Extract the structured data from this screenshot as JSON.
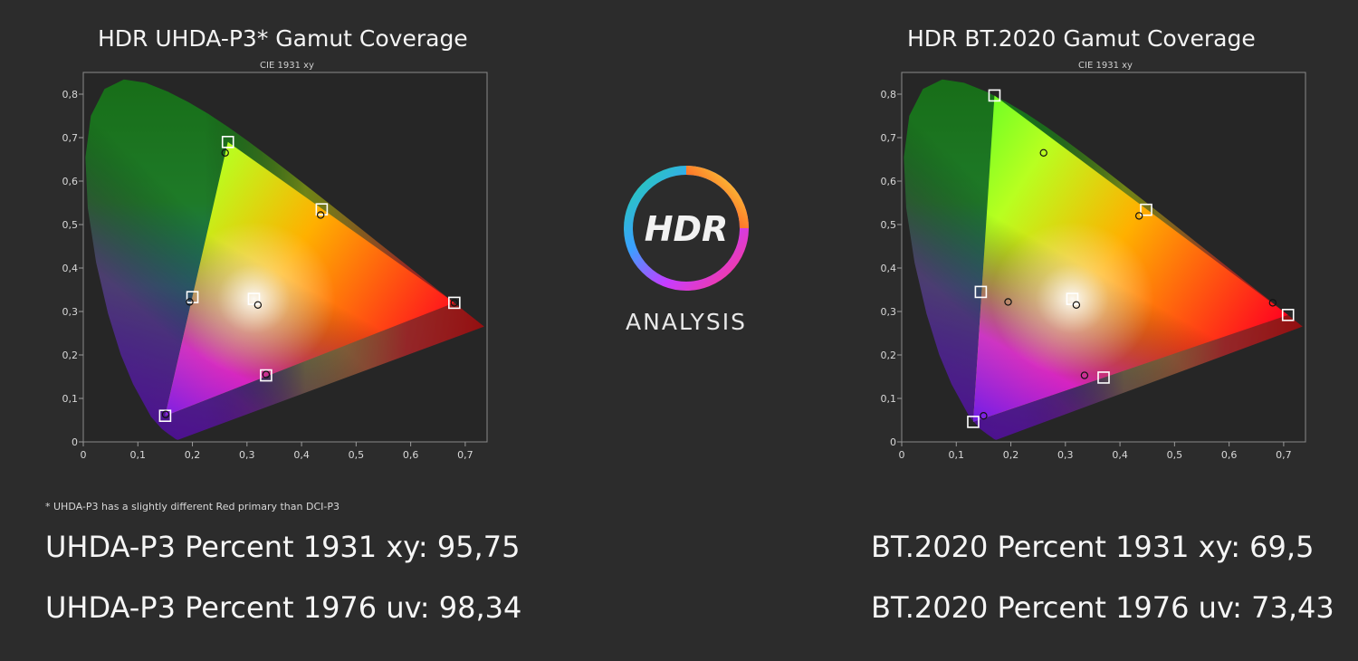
{
  "logo": {
    "mark": "HDR",
    "text": "ANALYSIS"
  },
  "footnote": "* UHDA-P3 has a slightly different Red primary than DCI-P3",
  "stats": {
    "left": [
      "UHDA-P3 Percent 1931 xy: 95,75",
      "UHDA-P3 Percent 1976 uv: 98,34"
    ],
    "right": [
      "BT.2020 Percent 1931 xy: 69,5",
      "BT.2020 Percent 1976 uv: 73,43"
    ]
  },
  "chart_data": [
    {
      "type": "scatter",
      "title": "HDR UHDA-P3* Gamut Coverage",
      "subtitle": "CIE 1931 xy",
      "xlim": [
        0,
        0.74
      ],
      "ylim": [
        0,
        0.85
      ],
      "x_ticks": [
        "0",
        "0,1",
        "0,2",
        "0,3",
        "0,4",
        "0,5",
        "0,6",
        "0,7"
      ],
      "y_ticks": [
        "0",
        "0,1",
        "0,2",
        "0,3",
        "0,4",
        "0,5",
        "0,6",
        "0,7",
        "0,8"
      ],
      "grid": false,
      "gamut_triangle": [
        [
          0.68,
          0.32
        ],
        [
          0.265,
          0.69
        ],
        [
          0.15,
          0.06
        ]
      ],
      "targets": [
        {
          "x": 0.68,
          "y": 0.32
        },
        {
          "x": 0.265,
          "y": 0.69
        },
        {
          "x": 0.15,
          "y": 0.06
        },
        {
          "x": 0.3127,
          "y": 0.329
        },
        {
          "x": 0.2,
          "y": 0.333
        },
        {
          "x": 0.437,
          "y": 0.535
        },
        {
          "x": 0.335,
          "y": 0.153
        }
      ],
      "measured": [
        {
          "x": 0.68,
          "y": 0.32
        },
        {
          "x": 0.26,
          "y": 0.665
        },
        {
          "x": 0.151,
          "y": 0.063
        },
        {
          "x": 0.32,
          "y": 0.315
        },
        {
          "x": 0.195,
          "y": 0.322
        },
        {
          "x": 0.435,
          "y": 0.522
        },
        {
          "x": 0.335,
          "y": 0.155
        }
      ]
    },
    {
      "type": "scatter",
      "title": "HDR BT.2020  Gamut Coverage",
      "subtitle": "CIE 1931 xy",
      "xlim": [
        0,
        0.74
      ],
      "ylim": [
        0,
        0.85
      ],
      "x_ticks": [
        "0",
        "0,1",
        "0,2",
        "0,3",
        "0,4",
        "0,5",
        "0,6",
        "0,7"
      ],
      "y_ticks": [
        "0",
        "0,1",
        "0,2",
        "0,3",
        "0,4",
        "0,5",
        "0,6",
        "0,7",
        "0,8"
      ],
      "grid": false,
      "gamut_triangle": [
        [
          0.708,
          0.292
        ],
        [
          0.17,
          0.797
        ],
        [
          0.131,
          0.046
        ]
      ],
      "targets": [
        {
          "x": 0.708,
          "y": 0.292
        },
        {
          "x": 0.17,
          "y": 0.797
        },
        {
          "x": 0.131,
          "y": 0.046
        },
        {
          "x": 0.3127,
          "y": 0.329
        },
        {
          "x": 0.145,
          "y": 0.345
        },
        {
          "x": 0.448,
          "y": 0.534
        },
        {
          "x": 0.37,
          "y": 0.148
        }
      ],
      "measured": [
        {
          "x": 0.68,
          "y": 0.32
        },
        {
          "x": 0.26,
          "y": 0.665
        },
        {
          "x": 0.15,
          "y": 0.06
        },
        {
          "x": 0.32,
          "y": 0.315
        },
        {
          "x": 0.195,
          "y": 0.322
        },
        {
          "x": 0.435,
          "y": 0.52
        },
        {
          "x": 0.335,
          "y": 0.153
        }
      ]
    }
  ]
}
